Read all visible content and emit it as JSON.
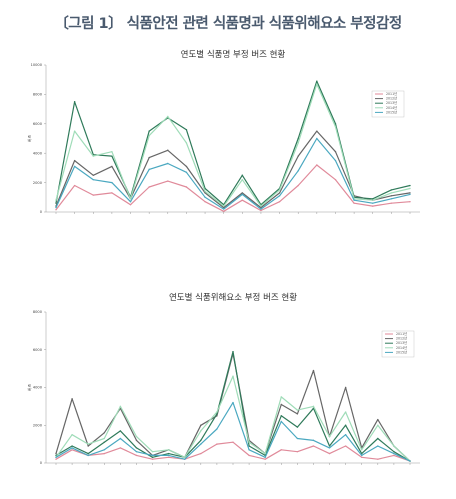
{
  "heading": "〔그림 1〕 식품안전 관련 식품명과 식품위해요소 부정감정",
  "chart_data": [
    {
      "type": "line",
      "title": "연도별 식품명 부정 버즈 현황",
      "ylabel": "버즈",
      "ylim": [
        0,
        10000
      ],
      "yticks": [
        0,
        2000,
        4000,
        6000,
        8000,
        10000
      ],
      "legend_position": "top-right",
      "categories": [
        "",
        "",
        "",
        "",
        "",
        "",
        "",
        "",
        "",
        "",
        "",
        "",
        "",
        "",
        "",
        "",
        "",
        "",
        "",
        ""
      ],
      "series": [
        {
          "name": "2011년",
          "color": "#e08a9a",
          "values": [
            150,
            1800,
            1150,
            1300,
            500,
            1700,
            2100,
            1700,
            700,
            50,
            800,
            100,
            700,
            1800,
            3200,
            2200,
            600,
            400,
            600,
            700
          ]
        },
        {
          "name": "2012년",
          "color": "#666666",
          "values": [
            400,
            3500,
            2500,
            3100,
            900,
            3700,
            4200,
            3100,
            1300,
            300,
            1300,
            300,
            1300,
            3800,
            5500,
            4100,
            1100,
            800,
            1100,
            1300
          ]
        },
        {
          "name": "2013년",
          "color": "#2f7a5a",
          "values": [
            600,
            7500,
            3900,
            3800,
            1000,
            5500,
            6400,
            5600,
            1600,
            500,
            2500,
            500,
            1600,
            5000,
            8900,
            6000,
            1000,
            900,
            1500,
            1800
          ]
        },
        {
          "name": "2014년",
          "color": "#9fdcb8",
          "values": [
            800,
            5500,
            3800,
            4100,
            900,
            5200,
            6500,
            4700,
            1400,
            400,
            2200,
            400,
            1500,
            4700,
            8700,
            5800,
            900,
            800,
            1300,
            1600
          ]
        },
        {
          "name": "2015년",
          "color": "#4aa8c0",
          "values": [
            300,
            3100,
            2200,
            2000,
            700,
            2900,
            3300,
            2700,
            1000,
            200,
            1200,
            200,
            1100,
            2800,
            5000,
            3500,
            800,
            600,
            900,
            1200
          ]
        }
      ]
    },
    {
      "type": "line",
      "title": "연도별 식품위해요소 부정 버즈 현황",
      "ylabel": "버즈",
      "ylim": [
        0,
        8000
      ],
      "yticks": [
        0,
        2000,
        4000,
        6000,
        8000
      ],
      "legend_position": "top-right",
      "categories": [
        "",
        "",
        "",
        "",
        "",
        "",
        "",
        "",
        "",
        "",
        "",
        "",
        "",
        "",
        "",
        "",
        "",
        "",
        "",
        "",
        "",
        "",
        ""
      ],
      "series": [
        {
          "name": "2011년",
          "color": "#e08a9a",
          "values": [
            200,
            700,
            400,
            500,
            800,
            400,
            200,
            300,
            200,
            500,
            1000,
            1100,
            400,
            200,
            700,
            600,
            900,
            500,
            900,
            300,
            200,
            400,
            100
          ]
        },
        {
          "name": "2012년",
          "color": "#666666",
          "values": [
            500,
            3400,
            900,
            1600,
            2900,
            1200,
            400,
            700,
            300,
            2000,
            2500,
            5800,
            1200,
            500,
            3100,
            2600,
            4900,
            1400,
            4000,
            800,
            2300,
            900,
            100
          ]
        },
        {
          "name": "2013년",
          "color": "#2f7a5a",
          "values": [
            400,
            900,
            500,
            1100,
            1700,
            800,
            300,
            500,
            300,
            1200,
            2600,
            5900,
            900,
            400,
            2500,
            1900,
            2900,
            900,
            2000,
            500,
            1300,
            600,
            100
          ]
        },
        {
          "name": "2014년",
          "color": "#9fdcb8",
          "values": [
            300,
            1500,
            1000,
            1300,
            3000,
            1400,
            600,
            700,
            300,
            1700,
            2700,
            4600,
            1100,
            500,
            3500,
            2800,
            3000,
            1400,
            2700,
            700,
            2000,
            900,
            100
          ]
        },
        {
          "name": "2015년",
          "color": "#4aa8c0",
          "values": [
            300,
            800,
            400,
            700,
            1300,
            600,
            400,
            400,
            200,
            1000,
            1800,
            3200,
            700,
            300,
            2200,
            1300,
            1200,
            800,
            1500,
            400,
            900,
            500,
            100
          ]
        }
      ]
    }
  ]
}
